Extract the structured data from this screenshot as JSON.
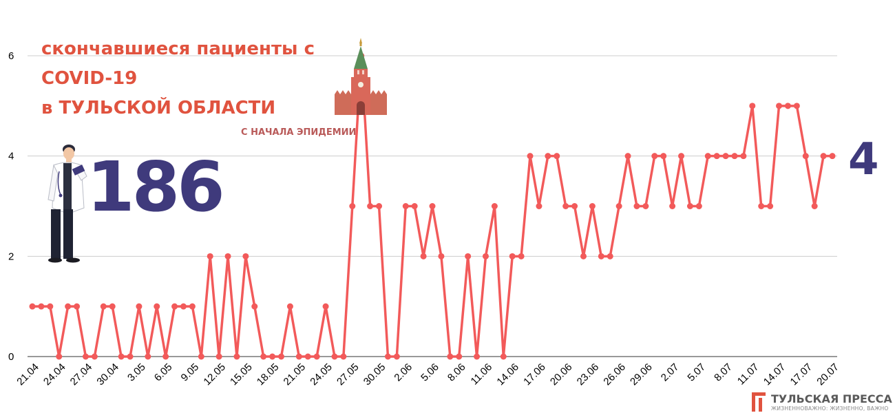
{
  "title_lines": [
    "скончавшиеся пациенты с",
    "COVID-19",
    "в ТУЛЬСКОЙ ОБЛАСТИ"
  ],
  "subtitle": "С НАЧАЛА ЭПИДЕМИИ",
  "total_deaths": "186",
  "latest_value": "4",
  "brand": {
    "name": "ТУЛЬСКАЯ ПРЕССА",
    "tagline": "ЖИЗНЕННОВАЖНО: ЖИЗНЕННО, ВАЖНО"
  },
  "colors": {
    "line": "#f25a5a",
    "title": "#e0533f",
    "subtitle": "#b95a59",
    "numbers": "#3f3a7c",
    "grid": "#cccccc"
  },
  "icons": [
    "doctor-illustration",
    "kremlin-tower-illustration",
    "brand-logo-icon"
  ],
  "chart_data": {
    "type": "line",
    "title": "скончавшиеся пациенты с COVID-19 в ТУЛЬСКОЙ ОБЛАСТИ",
    "subtitle": "С НАЧАЛА ЭПИДЕМИИ",
    "x_tick_labels": [
      "21.04",
      "24.04",
      "27.04",
      "30.04",
      "3.05",
      "6.05",
      "9.05",
      "12.05",
      "15.05",
      "18.05",
      "21.05",
      "24.05",
      "27.05",
      "30.05",
      "2.06",
      "5.06",
      "8.06",
      "11.06",
      "14.06",
      "17.06",
      "20.06",
      "23.06",
      "26.06",
      "29.06",
      "2.07",
      "5.07",
      "8.07",
      "11.07",
      "14.07",
      "17.07",
      "20.07"
    ],
    "x_tick_every": 3,
    "ylim": [
      0,
      6
    ],
    "yticks": [
      0,
      2,
      4,
      6
    ],
    "grid": true,
    "legend": "none",
    "series": [
      {
        "values": [
          1,
          1,
          1,
          0,
          1,
          1,
          0,
          0,
          1,
          1,
          0,
          0,
          1,
          0,
          1,
          0,
          1,
          1,
          1,
          0,
          2,
          0,
          2,
          0,
          2,
          1,
          0,
          0,
          0,
          1,
          0,
          0,
          0,
          1,
          0,
          0,
          3,
          6,
          3,
          3,
          0,
          0,
          3,
          3,
          2,
          3,
          2,
          0,
          0,
          2,
          0,
          2,
          3,
          0,
          2,
          2,
          4,
          3,
          4,
          4,
          3,
          3,
          2,
          3,
          2,
          2,
          3,
          4,
          3,
          3,
          4,
          4,
          3,
          4,
          3,
          3,
          4,
          4,
          4,
          4,
          4,
          5,
          3,
          3,
          5,
          5,
          5,
          4,
          3,
          4,
          4
        ]
      }
    ]
  }
}
